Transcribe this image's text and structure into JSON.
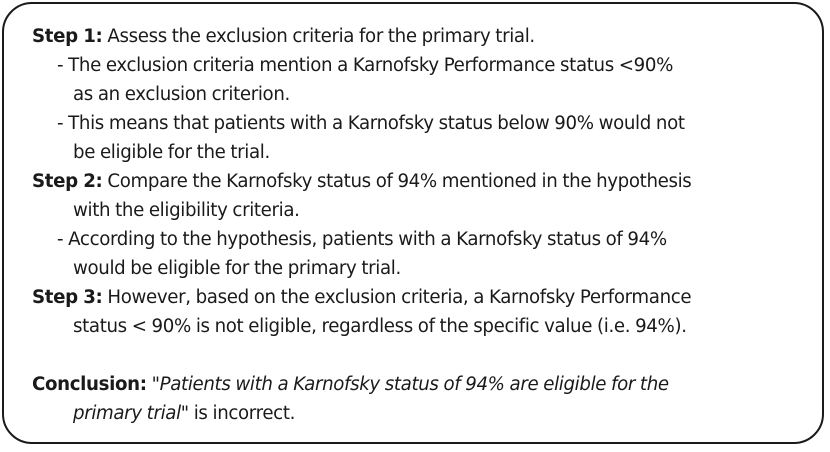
{
  "step1": {
    "label": "Step 1:",
    "text": " Assess the exclusion criteria for the primary trial.",
    "bullets": [
      {
        "line1": "- The exclusion criteria mention a Karnofsky Performance status <90%",
        "line2": "as an exclusion criterion."
      },
      {
        "line1": "- This means that patients with a Karnofsky status below 90% would not",
        "line2": "be eligible for the trial."
      }
    ]
  },
  "step2": {
    "label": "Step 2:",
    "text": " Compare the Karnofsky status of 94% mentioned in the hypothesis",
    "text_cont": "with the eligibility criteria.",
    "bullets": [
      {
        "line1": "- According to the hypothesis, patients with a Karnofsky status of 94%",
        "line2": "would be eligible for the primary trial."
      }
    ]
  },
  "step3": {
    "label": "Step 3:",
    "text": " However, based on the exclusion criteria, a Karnofsky Performance",
    "text_cont": "status < 90% is not eligible, regardless of the specific value (i.e. 94%)."
  },
  "conclusion": {
    "label": "Conclusion:",
    "quote_part1": "\"Patients with a Karnofsky status of 94% are eligible for the",
    "quote_part2": "primary trial\"",
    "tail": " is incorrect."
  }
}
